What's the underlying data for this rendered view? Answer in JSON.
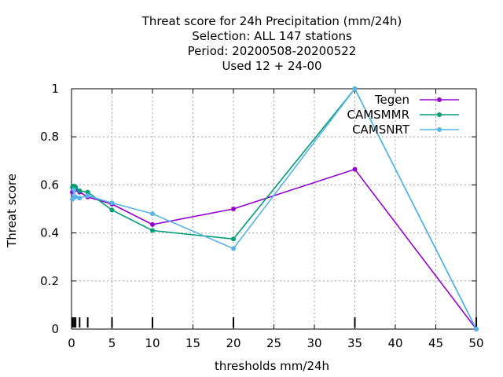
{
  "chart_data": {
    "type": "line",
    "title_lines": [
      "Threat score  for 24h Precipitation (mm/24h)",
      "Selection: ALL    147 stations",
      "Period: 20200508-20200522",
      "Used  12 + 24-00"
    ],
    "xlabel": "thresholds mm/24h",
    "ylabel": "Threat score",
    "xlim": [
      0,
      50
    ],
    "ylim": [
      0,
      1
    ],
    "x_ticks": [
      0,
      5,
      10,
      15,
      20,
      25,
      30,
      35,
      40,
      45,
      50
    ],
    "y_ticks": [
      0,
      0.2,
      0.4,
      0.6,
      0.8,
      1
    ],
    "y_tick_labels": [
      "0",
      "0.2",
      "0.4",
      "0.6",
      "0.8",
      "1"
    ],
    "grid": true,
    "legend_position": "top-right",
    "threshold_marks": [
      0.1,
      0.3,
      0.5,
      1,
      2,
      5,
      10,
      20,
      35,
      50
    ],
    "series": [
      {
        "name": "Tegen",
        "color": "#9400d3",
        "x": [
          0.1,
          0.3,
          0.5,
          1,
          2,
          5,
          10,
          20,
          35,
          50
        ],
        "y": [
          0.57,
          0.59,
          0.58,
          0.57,
          0.55,
          0.52,
          0.435,
          0.5,
          0.665,
          0
        ]
      },
      {
        "name": "CAMSMMR",
        "color": "#009e73",
        "x": [
          0.1,
          0.3,
          0.5,
          1,
          2,
          5,
          10,
          20,
          35,
          50
        ],
        "y": [
          0.59,
          0.595,
          0.59,
          0.575,
          0.57,
          0.495,
          0.41,
          0.375,
          1.0,
          0
        ]
      },
      {
        "name": "CAMSNRT",
        "color": "#56b4e9",
        "x": [
          0.1,
          0.3,
          0.5,
          1,
          2,
          5,
          10,
          20,
          35,
          50
        ],
        "y": [
          0.54,
          0.58,
          0.55,
          0.545,
          0.555,
          0.525,
          0.48,
          0.335,
          1.0,
          0
        ]
      }
    ]
  }
}
